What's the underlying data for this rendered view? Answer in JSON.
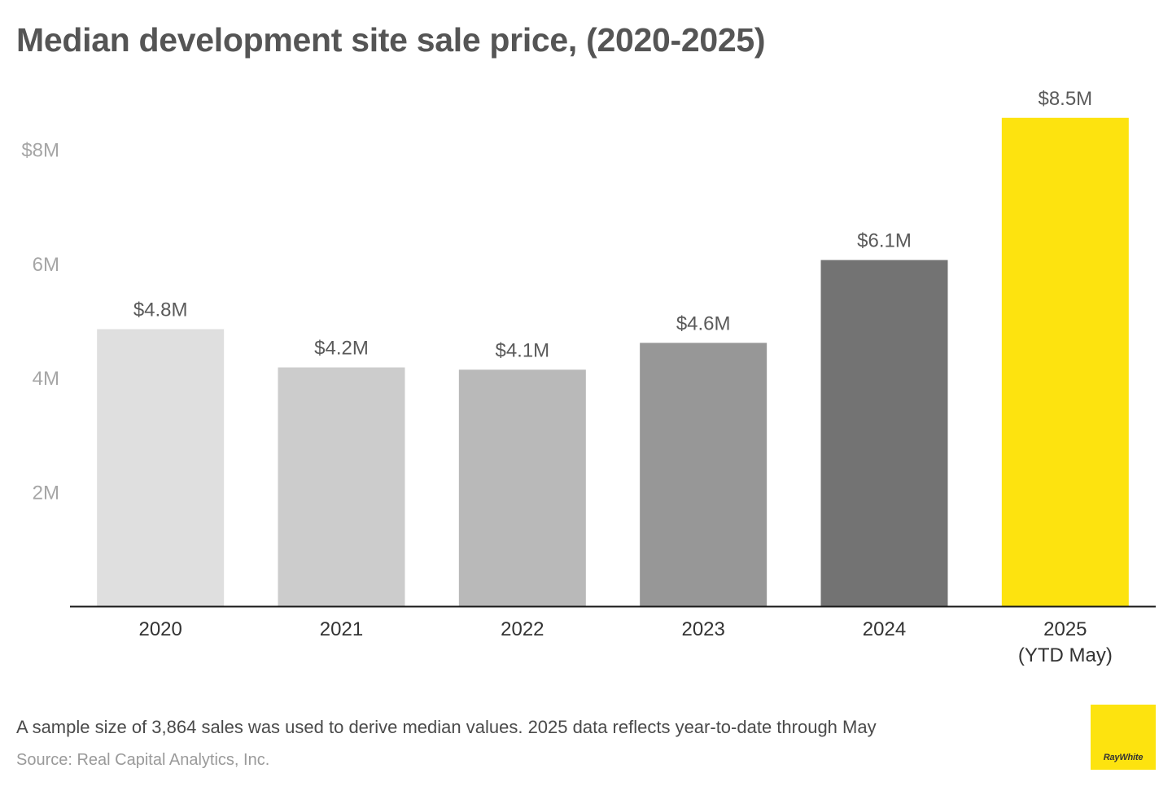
{
  "title": "Median development site sale price, (2020-2025)",
  "footnote": "A sample size of 3,864 sales was used to derive median values. 2025 data reflects year-to-date through May",
  "source": "Source: Real Capital Analytics, Inc.",
  "logo": {
    "text": "RayWhite",
    "color": "#fde30f"
  },
  "chart_data": {
    "type": "bar",
    "title": "Median development site sale price, (2020-2025)",
    "xlabel": "",
    "ylabel": "",
    "categories": [
      "2020",
      "2021",
      "2022",
      "2023",
      "2024",
      "2025\n(YTD May)"
    ],
    "values": [
      4.85,
      4.18,
      4.14,
      4.61,
      6.06,
      8.55
    ],
    "data_labels": [
      "$4.8M",
      "$4.2M",
      "$4.1M",
      "$4.6M",
      "$6.1M",
      "$8.5M"
    ],
    "bar_colors": [
      "#dfdfdf",
      "#cccccc",
      "#b9b9b9",
      "#979797",
      "#737373",
      "#fde30f"
    ],
    "y_ticks": [
      2,
      4,
      6,
      8
    ],
    "y_tick_labels": [
      "2M",
      "4M",
      "6M",
      "$8M"
    ],
    "ylim": [
      0,
      9
    ],
    "grid": false,
    "legend": "none"
  }
}
